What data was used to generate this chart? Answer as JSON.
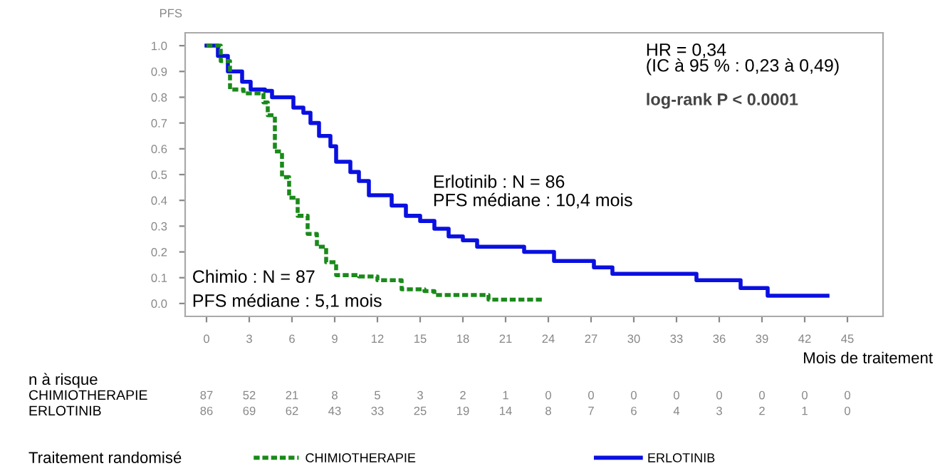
{
  "chart_data": {
    "type": "step",
    "ylabel": "PFS",
    "xlabel": "Mois de traitement",
    "legend_title": "Traitement randomisé",
    "legend": "bottom",
    "grid": false,
    "xlim": [
      -1.5,
      47.5
    ],
    "xticks": [
      0,
      3,
      6,
      9,
      12,
      15,
      18,
      21,
      24,
      27,
      30,
      33,
      36,
      39,
      42,
      45
    ],
    "ylim": [
      -0.05,
      1.05
    ],
    "yticks": [
      {
        "value": 0,
        "label": "0.0"
      },
      0.1,
      0.2,
      0.3,
      0.4,
      0.5,
      0.6,
      0.7,
      0.8,
      0.9,
      {
        "value": 1,
        "label": "1.0"
      }
    ],
    "series": [
      {
        "name": "CHIMIOTHERAPIE",
        "color": "#1a8a1a",
        "line_style": "dotted",
        "x": [
          0,
          1,
          1.65,
          2.6,
          4,
          4.3,
          4.8,
          5.3,
          5.8,
          6.4,
          7.1,
          7.75,
          8.4,
          9.1,
          10.7,
          12,
          13.7,
          15.3,
          16,
          18.6,
          19.8,
          23.6
        ],
        "values": [
          1.0,
          0.94,
          0.83,
          0.815,
          0.78,
          0.73,
          0.59,
          0.49,
          0.41,
          0.34,
          0.27,
          0.22,
          0.16,
          0.11,
          0.105,
          0.09,
          0.055,
          0.048,
          0.033,
          0.033,
          0.015,
          0.015
        ]
      },
      {
        "name": "ERLOTINIB",
        "color": "#0a10e0",
        "line_style": "solid",
        "x": [
          0,
          0.8,
          1.5,
          2.5,
          3.1,
          4.1,
          4.6,
          5.4,
          6.1,
          6.8,
          7.3,
          7.9,
          8.7,
          9.1,
          10.1,
          10.7,
          11.4,
          12.4,
          13,
          14,
          15,
          16,
          17,
          18,
          19,
          21.9,
          22.3,
          24.3,
          24.4,
          27.2,
          28.5,
          34.4,
          37.5,
          39.4,
          43.6
        ],
        "values": [
          1.0,
          0.96,
          0.9,
          0.86,
          0.83,
          0.825,
          0.8,
          0.8,
          0.76,
          0.74,
          0.7,
          0.65,
          0.61,
          0.55,
          0.51,
          0.475,
          0.42,
          0.42,
          0.38,
          0.34,
          0.32,
          0.29,
          0.26,
          0.245,
          0.22,
          0.22,
          0.2,
          0.2,
          0.165,
          0.14,
          0.115,
          0.09,
          0.06,
          0.03,
          0.03
        ]
      }
    ],
    "annotations": [
      "HR = 0,34",
      "(IC à 95 % : 0,23 à 0,49)",
      "log-rank P < 0.0001",
      "Erlotinib : N = 86",
      "PFS médiane : 10,4 mois",
      "Chimio : N = 87",
      "PFS médiane : 5,1 mois",
      "n à risque",
      "87",
      "52",
      "21",
      "8",
      "5",
      "3",
      "2",
      "1",
      "0",
      "0",
      "0",
      "0",
      "0",
      "0",
      "0",
      "0",
      "86",
      "69",
      "62",
      "43",
      "33",
      "25",
      "19",
      "14",
      "8",
      "7",
      "6",
      "4",
      "3",
      "2",
      "1",
      "0"
    ]
  }
}
